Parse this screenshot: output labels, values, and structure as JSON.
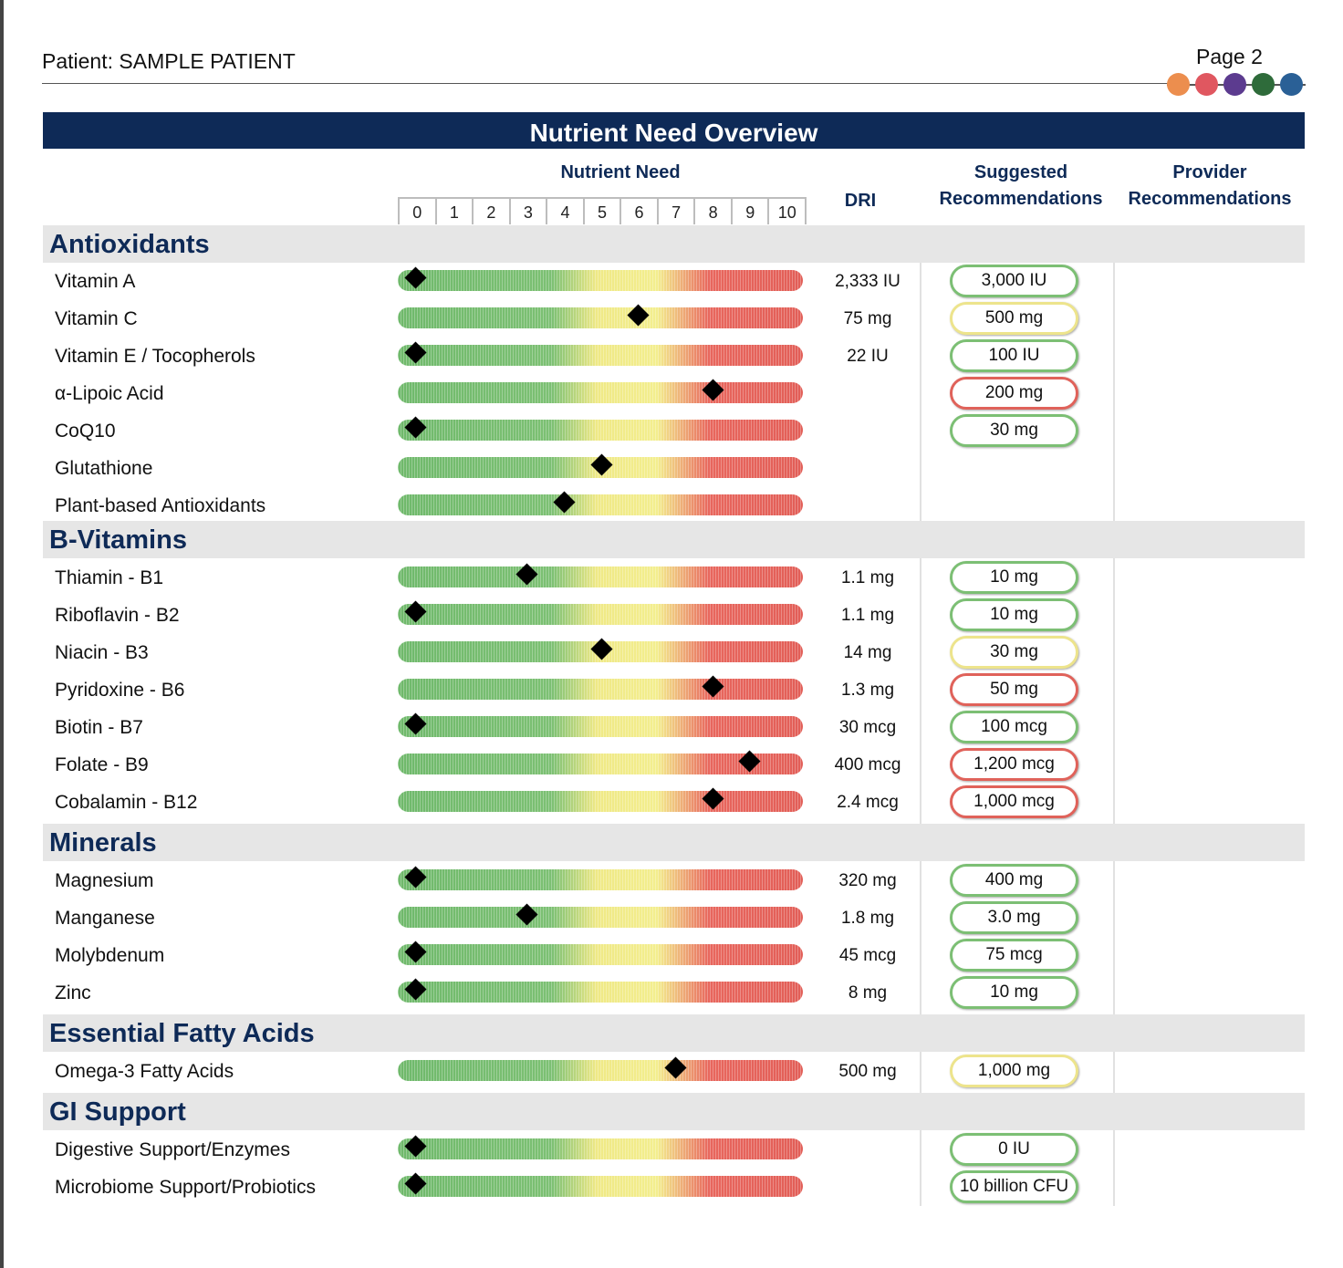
{
  "header": {
    "patient": "Patient: SAMPLE PATIENT",
    "page": "Page 2",
    "dot_colors": [
      "#ec8e4e",
      "#e05760",
      "#5c3b8f",
      "#2e6b3a",
      "#2a6096"
    ]
  },
  "title": "Nutrient Need Overview",
  "columns": {
    "need": "Nutrient Need",
    "dri": "DRI",
    "suggested": "Suggested Recommendations",
    "provider": "Provider Recommendations"
  },
  "scale": [
    "0",
    "1",
    "2",
    "3",
    "4",
    "5",
    "6",
    "7",
    "8",
    "9",
    "10"
  ],
  "level_colors": {
    "green": "#7cbf74",
    "yellow": "#ede48c",
    "red": "#e0625a"
  },
  "sections": [
    {
      "name": "Antioxidants",
      "items": [
        {
          "name": "Vitamin A",
          "score": 0,
          "dri": "2,333 IU",
          "suggested": "3,000 IU",
          "level": "green"
        },
        {
          "name": "Vitamin C",
          "score": 6,
          "dri": "75 mg",
          "suggested": "500 mg",
          "level": "yellow"
        },
        {
          "name": "Vitamin E / Tocopherols",
          "score": 0,
          "dri": "22 IU",
          "suggested": "100 IU",
          "level": "green"
        },
        {
          "name": "α-Lipoic Acid",
          "score": 8,
          "dri": "",
          "suggested": "200 mg",
          "level": "red"
        },
        {
          "name": "CoQ10",
          "score": 0,
          "dri": "",
          "suggested": "30 mg",
          "level": "green"
        },
        {
          "name": "Glutathione",
          "score": 5,
          "dri": "",
          "suggested": "",
          "level": ""
        },
        {
          "name": "Plant-based Antioxidants",
          "score": 4,
          "dri": "",
          "suggested": "",
          "level": ""
        }
      ]
    },
    {
      "name": "B-Vitamins",
      "items": [
        {
          "name": "Thiamin - B1",
          "score": 3,
          "dri": "1.1 mg",
          "suggested": "10 mg",
          "level": "green"
        },
        {
          "name": "Riboflavin - B2",
          "score": 0,
          "dri": "1.1 mg",
          "suggested": "10 mg",
          "level": "green"
        },
        {
          "name": "Niacin - B3",
          "score": 5,
          "dri": "14 mg",
          "suggested": "30 mg",
          "level": "yellow"
        },
        {
          "name": "Pyridoxine - B6",
          "score": 8,
          "dri": "1.3 mg",
          "suggested": "50 mg",
          "level": "red"
        },
        {
          "name": "Biotin - B7",
          "score": 0,
          "dri": "30 mcg",
          "suggested": "100 mcg",
          "level": "green"
        },
        {
          "name": "Folate - B9",
          "score": 9,
          "dri": "400 mcg",
          "suggested": "1,200 mcg",
          "level": "red"
        },
        {
          "name": "Cobalamin - B12",
          "score": 8,
          "dri": "2.4 mcg",
          "suggested": "1,000 mcg",
          "level": "red"
        }
      ]
    },
    {
      "name": "Minerals",
      "items": [
        {
          "name": "Magnesium",
          "score": 0,
          "dri": "320 mg",
          "suggested": "400 mg",
          "level": "green"
        },
        {
          "name": "Manganese",
          "score": 3,
          "dri": "1.8 mg",
          "suggested": "3.0 mg",
          "level": "green"
        },
        {
          "name": "Molybdenum",
          "score": 0,
          "dri": "45 mcg",
          "suggested": "75 mcg",
          "level": "green"
        },
        {
          "name": "Zinc",
          "score": 0,
          "dri": "8 mg",
          "suggested": "10 mg",
          "level": "green"
        }
      ]
    },
    {
      "name": "Essential Fatty Acids",
      "items": [
        {
          "name": "Omega-3 Fatty Acids",
          "score": 7,
          "dri": "500 mg",
          "suggested": "1,000 mg",
          "level": "yellow"
        }
      ]
    },
    {
      "name": "GI Support",
      "items": [
        {
          "name": "Digestive Support/Enzymes",
          "score": 0,
          "dri": "",
          "suggested": "0 IU",
          "level": "green"
        },
        {
          "name": "Microbiome Support/Probiotics",
          "score": 0,
          "dri": "",
          "suggested": "10 billion CFU",
          "level": "green"
        }
      ]
    }
  ]
}
